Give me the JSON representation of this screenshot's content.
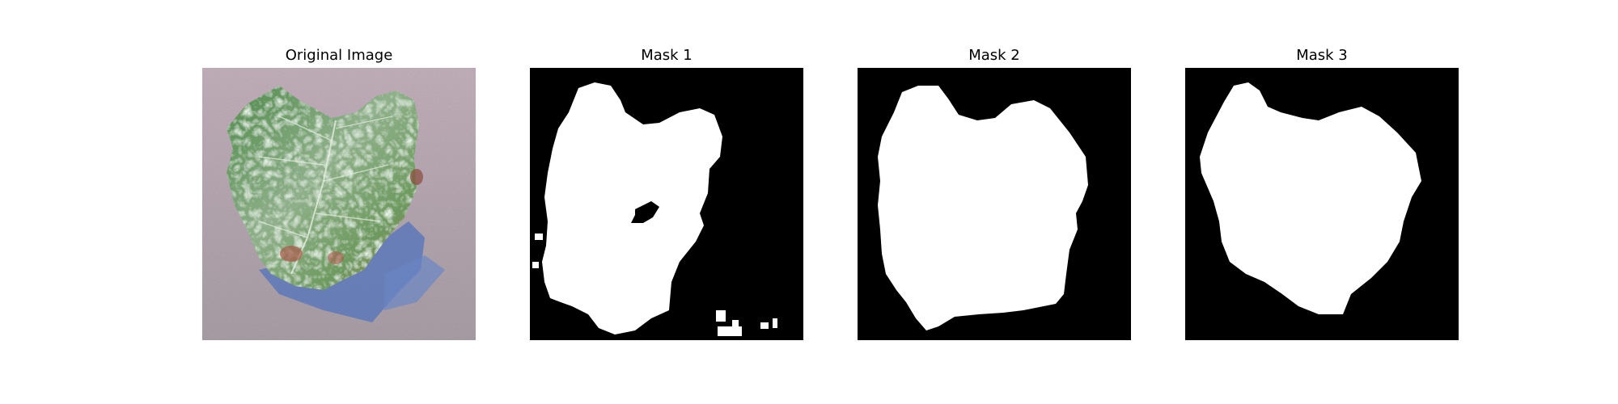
{
  "figure": {
    "panels": [
      {
        "title": "Original Image"
      },
      {
        "title": "Mask 1"
      },
      {
        "title": "Mask 2"
      },
      {
        "title": "Mask 3"
      }
    ],
    "colors": {
      "background": "#ffffff",
      "mask_background": "#000000",
      "mask_foreground": "#ffffff",
      "photo_backdrop": "#b8a8b2",
      "leaf_green": "#5f8f58",
      "leaf_pale": "#b8cfb8",
      "shadow_blue": "#5d78b8",
      "stain_red": "#a85a4a"
    }
  }
}
